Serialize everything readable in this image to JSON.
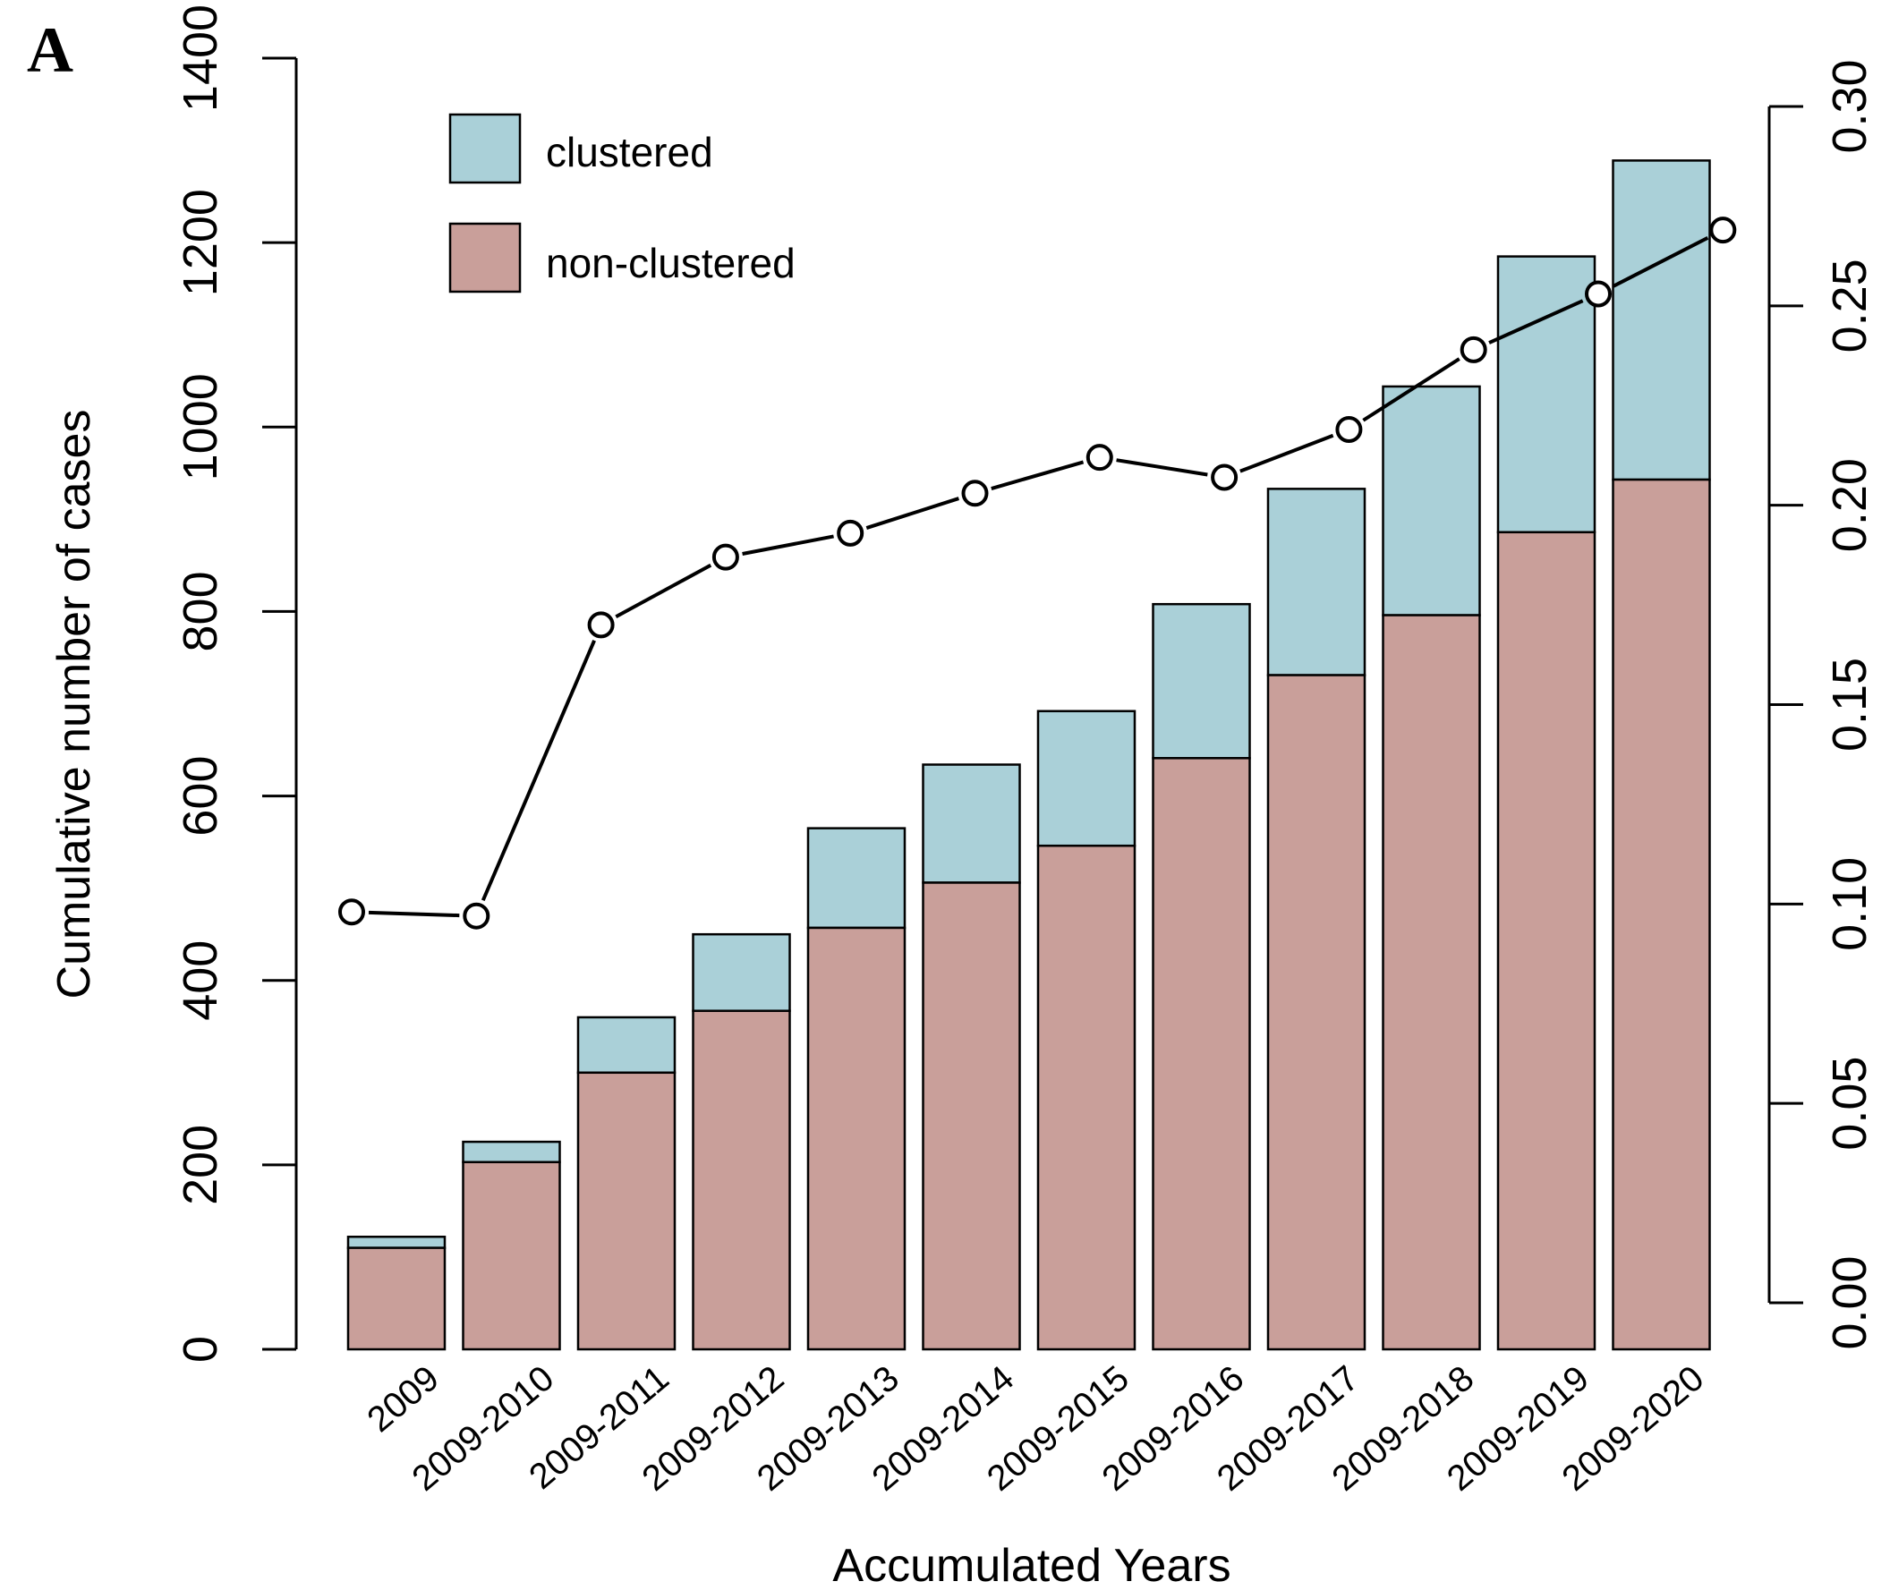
{
  "panel_label": "A",
  "colors": {
    "clustered": "#aad0d8",
    "non_clustered": "#c99f9a"
  },
  "chart_data": {
    "type": "bar",
    "stacked": true,
    "categories": [
      "2009",
      "2009-2010",
      "2009-2011",
      "2009-2012",
      "2009-2013",
      "2009-2014",
      "2009-2015",
      "2009-2016",
      "2009-2017",
      "2009-2018",
      "2009-2019",
      "2009-2020"
    ],
    "series": [
      {
        "name": "non-clustered",
        "values": [
          110,
          203,
          300,
          367,
          457,
          506,
          546,
          641,
          731,
          796,
          886,
          943
        ]
      },
      {
        "name": "clustered",
        "values": [
          12,
          22,
          60,
          83,
          108,
          128,
          146,
          167,
          202,
          248,
          299,
          346
        ]
      }
    ],
    "line_series": {
      "axis": "right",
      "values": [
        0.098,
        0.097,
        0.17,
        0.187,
        0.193,
        0.203,
        0.212,
        0.207,
        0.219,
        0.239,
        0.253,
        0.269
      ]
    },
    "xlabel": "Accumulated Years",
    "ylabel": "Cumulative number of cases",
    "ylim": [
      0,
      1400
    ],
    "yticks": [
      "0",
      "200",
      "400",
      "600",
      "800",
      "1000",
      "1200",
      "1400"
    ],
    "y2lim": [
      0,
      0.3
    ],
    "y2ticks": [
      "0.00",
      "0.05",
      "0.10",
      "0.15",
      "0.20",
      "0.25",
      "0.30"
    ],
    "legend": {
      "position": "top-left",
      "items": [
        "clustered",
        "non-clustered"
      ]
    },
    "grid": false
  }
}
